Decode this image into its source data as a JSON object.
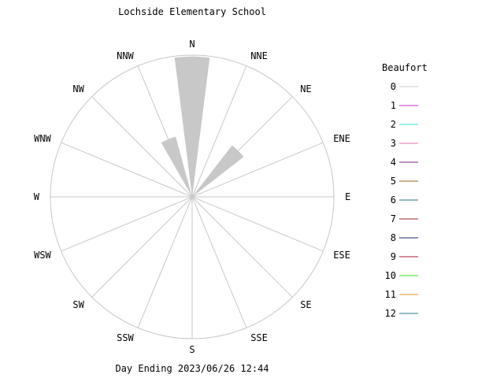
{
  "chart_data": {
    "type": "polar-bar",
    "title": "Lochside Elementary School",
    "footer": "Day Ending 2023/06/26 12:44",
    "directions": [
      "N",
      "NNE",
      "NE",
      "ENE",
      "E",
      "ESE",
      "SE",
      "SSE",
      "S",
      "SSW",
      "SW",
      "WSW",
      "W",
      "WNW",
      "NW",
      "NNW"
    ],
    "radius_max": 1.0,
    "series": [
      {
        "name": "0",
        "color": "#c8c8c8",
        "values": [
          0.99,
          0.0,
          0.46,
          0.0,
          0.0,
          0.0,
          0.0,
          0.0,
          0.0,
          0.0,
          0.0,
          0.0,
          0.0,
          0.0,
          0.0,
          0.44
        ]
      }
    ],
    "legend": {
      "title": "Beaufort",
      "entries": [
        {
          "label": "0",
          "color": "#c8c8c8"
        },
        {
          "label": "1",
          "color": "#c030c0"
        },
        {
          "label": "2",
          "color": "#30e0e0"
        },
        {
          "label": "3",
          "color": "#e070b0"
        },
        {
          "label": "4",
          "color": "#7a2080"
        },
        {
          "label": "5",
          "color": "#9a6a20"
        },
        {
          "label": "6",
          "color": "#207080"
        },
        {
          "label": "7",
          "color": "#a02030"
        },
        {
          "label": "8",
          "color": "#202070"
        },
        {
          "label": "9",
          "color": "#a01830"
        },
        {
          "label": "10",
          "color": "#30e030"
        },
        {
          "label": "11",
          "color": "#e09020"
        },
        {
          "label": "12",
          "color": "#208080"
        }
      ]
    }
  }
}
